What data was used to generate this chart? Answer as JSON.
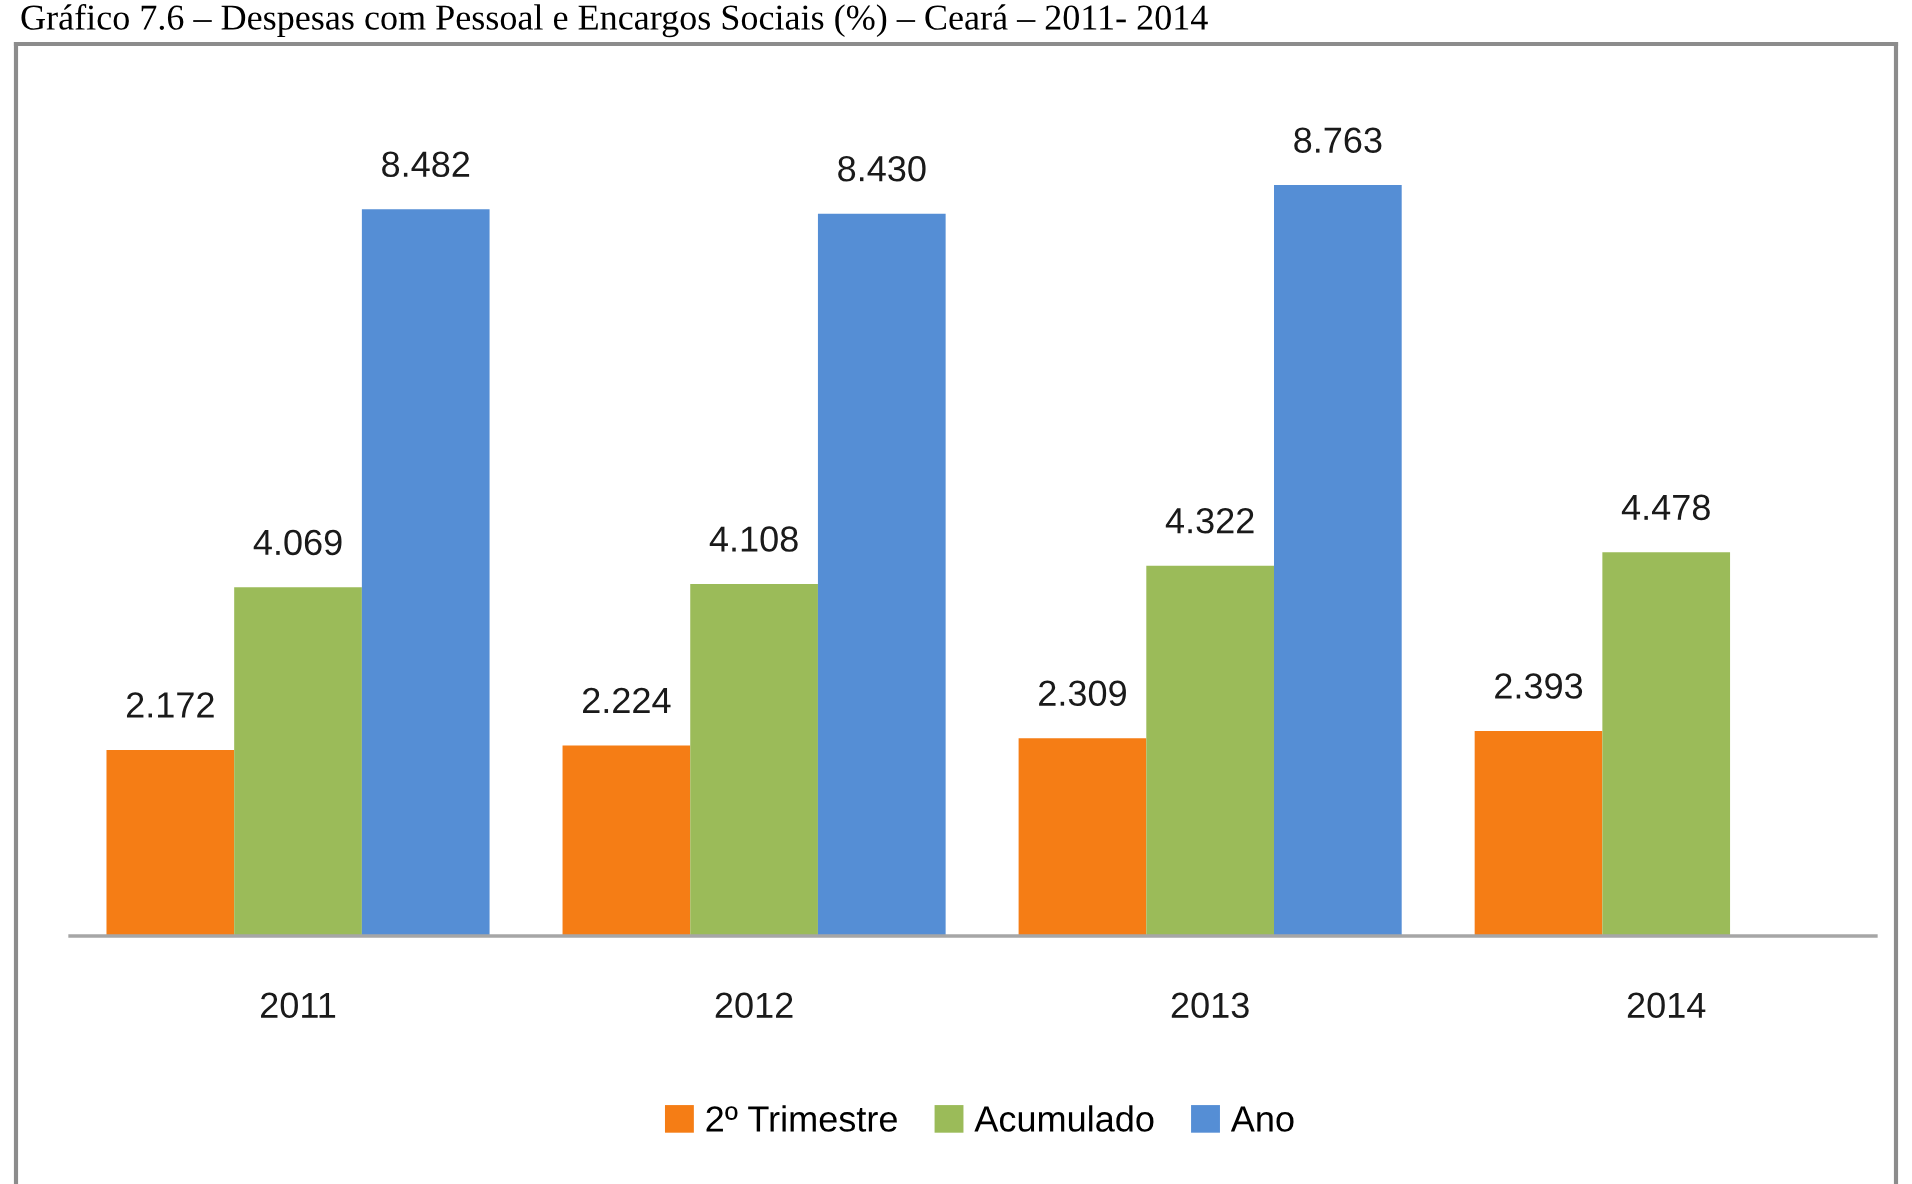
{
  "chart_data": {
    "type": "bar",
    "title": "Gráfico 7.6 – Despesas com Pessoal e Encargos Sociais (%) – Ceará – 2011- 2014",
    "categories": [
      "2011",
      "2012",
      "2013",
      "2014"
    ],
    "series": [
      {
        "name": "2º Trimestre",
        "color": "#f57d15",
        "values": [
          2.172,
          2.224,
          2.309,
          2.393
        ],
        "value_labels": [
          "2.172",
          "2.224",
          "2.309",
          "2.393"
        ]
      },
      {
        "name": "Acumulado",
        "color": "#9bbb59",
        "values": [
          4.069,
          4.108,
          4.322,
          4.478
        ],
        "value_labels": [
          "4.069",
          "4.108",
          "4.322",
          "4.478"
        ]
      },
      {
        "name": "Ano",
        "color": "#558ed5",
        "values": [
          8.482,
          8.43,
          8.763,
          null
        ],
        "value_labels": [
          "8.482",
          "8.430",
          "8.763",
          null
        ]
      }
    ],
    "legend": "bottom"
  }
}
